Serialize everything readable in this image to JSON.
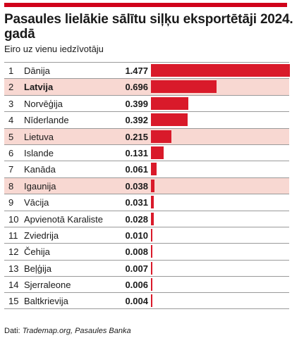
{
  "header": {
    "title": "Pasaules lielākie sālītu siļķu eksportētāji 2024. gadā",
    "subtitle": "Eiro uz vienu iedzīvotāju"
  },
  "source": {
    "prefix": "Dati: ",
    "text": "Trademap.org, Pasaules Banka"
  },
  "colors": {
    "bar": "#d91a2a",
    "highlight": "#f8d8d2",
    "accent": "#d0021b"
  },
  "chart_data": {
    "type": "bar",
    "orientation": "horizontal",
    "title": "Pasaules lielākie sālītu siļķu eksportētāji 2024. gadā",
    "subtitle": "Eiro uz vienu iedzīvotāju",
    "xlim": [
      0,
      1.477
    ],
    "categories": [
      "Dānija",
      "Latvija",
      "Norvēģija",
      "Nīderlande",
      "Lietuva",
      "Islande",
      "Kanāda",
      "Igaunija",
      "Vācija",
      "Apvienotā Karaliste",
      "Zviedrija",
      "Čehija",
      "Beļģija",
      "Sjerraleone",
      "Baltkrievija"
    ],
    "ranks": [
      "1",
      "2",
      "3",
      "4",
      "5",
      "6",
      "7",
      "8",
      "9",
      "10",
      "11",
      "12",
      "13",
      "14",
      "15"
    ],
    "values": [
      1.477,
      0.696,
      0.399,
      0.392,
      0.215,
      0.131,
      0.061,
      0.038,
      0.031,
      0.028,
      0.01,
      0.008,
      0.007,
      0.006,
      0.004
    ],
    "labels": [
      "1.477",
      "0.696",
      "0.399",
      "0.392",
      "0.215",
      "0.131",
      "0.061",
      "0.038",
      "0.031",
      "0.028",
      "0.010",
      "0.008",
      "0.007",
      "0.006",
      "0.004"
    ],
    "highlighted": [
      "Latvija",
      "Lietuva",
      "Igaunija"
    ],
    "bold_categories": [
      "Latvija"
    ]
  }
}
